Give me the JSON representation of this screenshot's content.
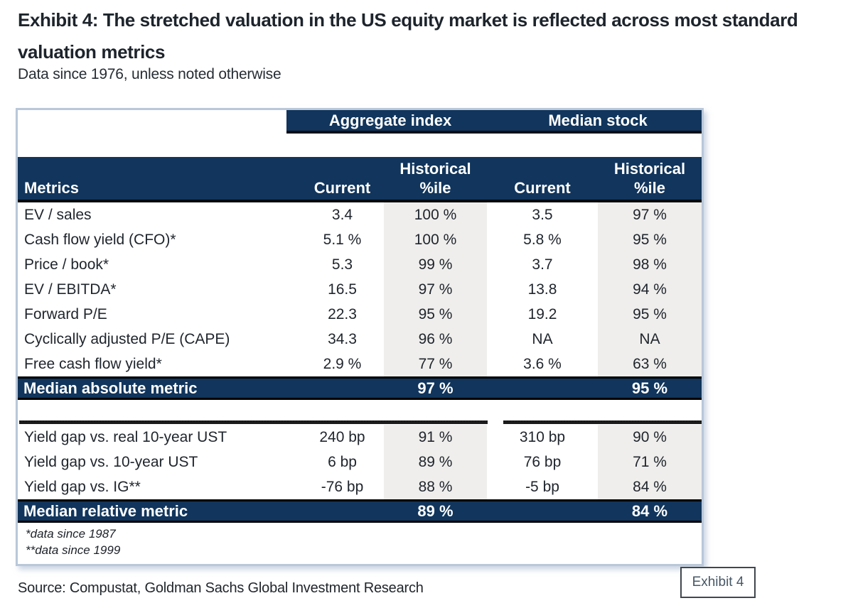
{
  "header": {
    "title": "Exhibit 4: The stretched valuation in the US equity market is reflected across most standard valuation metrics",
    "subtitle": "Data since 1976, unless noted otherwise"
  },
  "table": {
    "group_headers": {
      "aggregate": "Aggregate index",
      "median": "Median stock"
    },
    "columns": {
      "metrics": "Metrics",
      "current": "Current",
      "historical": "Historical",
      "pctile": "%ile"
    },
    "absolute_rows": [
      {
        "label": "EV / sales",
        "agg_current": "3.4",
        "agg_pctile": "100 %",
        "med_current": "3.5",
        "med_pctile": "97 %"
      },
      {
        "label": "Cash flow yield (CFO)*",
        "agg_current": "5.1 %",
        "agg_pctile": "100 %",
        "med_current": "5.8 %",
        "med_pctile": "95 %"
      },
      {
        "label": "Price / book*",
        "agg_current": "5.3",
        "agg_pctile": "99 %",
        "med_current": "3.7",
        "med_pctile": "98 %"
      },
      {
        "label": "EV / EBITDA*",
        "agg_current": "16.5",
        "agg_pctile": "97 %",
        "med_current": "13.8",
        "med_pctile": "94 %"
      },
      {
        "label": "Forward P/E",
        "agg_current": "22.3",
        "agg_pctile": "95 %",
        "med_current": "19.2",
        "med_pctile": "95 %"
      },
      {
        "label": "Cyclically adjusted P/E (CAPE)",
        "agg_current": "34.3",
        "agg_pctile": "96 %",
        "med_current": "NA",
        "med_pctile": "NA"
      },
      {
        "label": "Free cash flow yield*",
        "agg_current": "2.9 %",
        "agg_pctile": "77 %",
        "med_current": "3.6 %",
        "med_pctile": "63 %"
      }
    ],
    "absolute_summary": {
      "label": "Median absolute metric",
      "agg_pctile": "97 %",
      "med_pctile": "95 %"
    },
    "relative_rows": [
      {
        "label": "Yield gap vs. real 10-year UST",
        "agg_current": "240 bp",
        "agg_pctile": "91 %",
        "med_current": "310 bp",
        "med_pctile": "90 %"
      },
      {
        "label": "Yield gap vs. 10-year UST",
        "agg_current": "6 bp",
        "agg_pctile": "89 %",
        "med_current": "76 bp",
        "med_pctile": "71 %"
      },
      {
        "label": "Yield gap vs. IG**",
        "agg_current": "-76 bp",
        "agg_pctile": "88 %",
        "med_current": "-5 bp",
        "med_pctile": "84 %"
      }
    ],
    "relative_summary": {
      "label": "Median relative metric",
      "agg_pctile": "89 %",
      "med_pctile": "84 %"
    },
    "footnotes": [
      "*data since 1987",
      "**data since 1999"
    ]
  },
  "footer": {
    "source": "Source: Compustat, Goldman Sachs Global Investment Research",
    "exhibit_tag": "Exhibit 4"
  },
  "colors": {
    "navy": "#11355c",
    "column_shade": "#efeeec",
    "table_border": "#b9c7d9",
    "text": "#20262e"
  }
}
